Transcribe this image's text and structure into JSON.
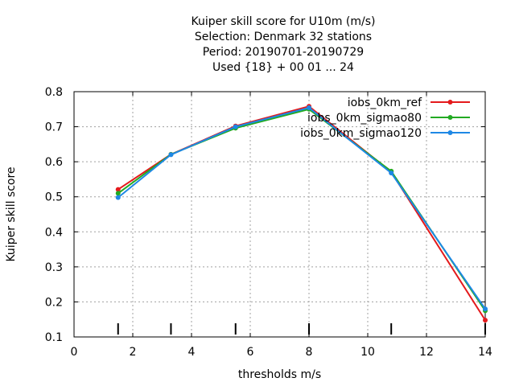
{
  "chart_data": {
    "type": "line",
    "title_lines": [
      "Kuiper skill score  for U10m (m/s)",
      "Selection: Denmark      32 stations",
      "Period: 20190701-20190729",
      "Used {18} + 00 01 ... 24"
    ],
    "xlabel": "thresholds m/s",
    "ylabel": "Kuiper skill score",
    "xlim": [
      0,
      14
    ],
    "ylim": [
      0.1,
      0.8
    ],
    "xticks": [
      0,
      2,
      4,
      6,
      8,
      10,
      12,
      14
    ],
    "yticks": [
      0.1,
      0.2,
      0.3,
      0.4,
      0.5,
      0.6,
      0.7,
      0.8
    ],
    "xtick_labels": [
      "0",
      "2",
      "4",
      "6",
      "8",
      "10",
      "12",
      "14"
    ],
    "ytick_labels": [
      "0.1",
      "0.2",
      "0.3",
      "0.4",
      "0.5",
      "0.6",
      "0.7",
      "0.8"
    ],
    "grid": true,
    "legend_position": "top-right",
    "threshold_marks": [
      1.5,
      3.3,
      5.5,
      8,
      10.8,
      14
    ],
    "x": [
      1.5,
      3.3,
      5.5,
      8,
      10.8,
      14
    ],
    "series": [
      {
        "name": "iobs_0km_ref",
        "color": "#e41a1c",
        "values": [
          0.521,
          0.621,
          0.702,
          0.758,
          0.571,
          0.148
        ]
      },
      {
        "name": "iobs_0km_sigmao80",
        "color": "#22aa22",
        "values": [
          0.51,
          0.621,
          0.696,
          0.75,
          0.573,
          0.175
        ]
      },
      {
        "name": "iobs_0km_sigmao120",
        "color": "#1e88e5",
        "values": [
          0.498,
          0.62,
          0.7,
          0.754,
          0.568,
          0.18
        ]
      }
    ]
  }
}
